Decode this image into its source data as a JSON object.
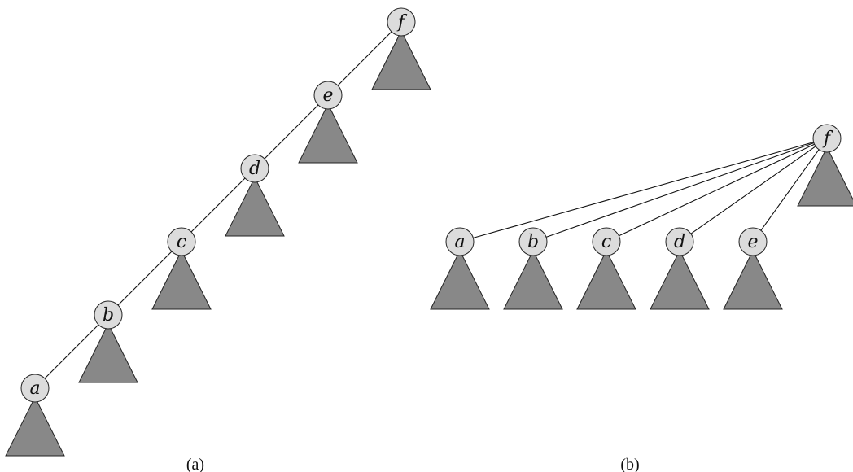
{
  "colors": {
    "subtree_fill": "#888888",
    "node_fill": "#dcdcdc",
    "stroke": "#222222"
  },
  "panel_a": {
    "caption": "(a)",
    "nodes": [
      "f",
      "e",
      "d",
      "c",
      "b",
      "a"
    ],
    "edges": [
      [
        "f",
        "e"
      ],
      [
        "e",
        "d"
      ],
      [
        "d",
        "c"
      ],
      [
        "c",
        "b"
      ],
      [
        "b",
        "a"
      ]
    ]
  },
  "panel_b": {
    "caption": "(b)",
    "nodes": [
      "f",
      "a",
      "b",
      "c",
      "d",
      "e"
    ],
    "edges": [
      [
        "f",
        "a"
      ],
      [
        "f",
        "b"
      ],
      [
        "f",
        "c"
      ],
      [
        "f",
        "d"
      ],
      [
        "f",
        "e"
      ]
    ]
  }
}
